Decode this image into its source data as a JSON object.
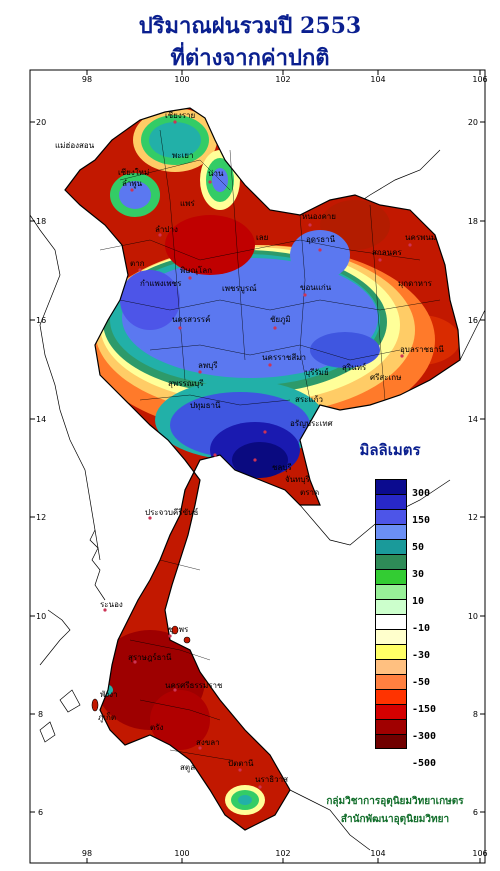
{
  "title": {
    "line1": "ปริมาณฝนรวมปี  2553",
    "line2": "ที่ต่างจากค่าปกติ"
  },
  "axes": {
    "x_ticks": [
      "98",
      "100",
      "102",
      "104",
      "106"
    ],
    "y_ticks": [
      "20",
      "18",
      "16",
      "14",
      "12",
      "10",
      "8",
      "6"
    ]
  },
  "legend": {
    "title": "มิลลิเมตร",
    "bins": [
      {
        "color": "#0b0b8f"
      },
      {
        "color": "#2828c8"
      },
      {
        "color": "#4d55e8"
      },
      {
        "color": "#6b8ff5"
      },
      {
        "color": "#1a9a9a"
      },
      {
        "color": "#2e8b57"
      },
      {
        "color": "#33cc33"
      },
      {
        "color": "#98f098"
      },
      {
        "color": "#ccffcc"
      },
      {
        "color": "#ffffff"
      },
      {
        "color": "#ffffcc"
      },
      {
        "color": "#ffff66"
      },
      {
        "color": "#ffc080"
      },
      {
        "color": "#ff8040"
      },
      {
        "color": "#ff3300"
      },
      {
        "color": "#d40000"
      },
      {
        "color": "#a00000"
      },
      {
        "color": "#700000"
      }
    ],
    "labels": [
      "300",
      "150",
      "50",
      "30",
      "10",
      "-10",
      "-30",
      "-50",
      "-150",
      "-300",
      "-500"
    ]
  },
  "provinces": [
    "เชียงราย",
    "เชียงใหม่",
    "แม่ฮ่องสอน",
    "ลำพูน",
    "ลำปาง",
    "พะเยา",
    "น่าน",
    "แพร่",
    "หนองคาย",
    "อุดรธานี",
    "สกลนคร",
    "นครพนม",
    "มุกดาหาร",
    "เลย",
    "ขอนแก่น",
    "ตาก",
    "กำแพงเพชร",
    "พิษณุโลก",
    "เพชรบูรณ์",
    "ชัยภูมิ",
    "นครสวรรค์",
    "นครราชสีมา",
    "อุบลราชธานี",
    "ลพบุรี",
    "สุพรรณบุรี",
    "ปทุมธานี",
    "ชลบุรี",
    "จันทบุรี",
    "ตราด",
    "ประจวบคีรีขันธ์",
    "ระนอง",
    "ชุมพร",
    "สุราษฎร์ธานี",
    "นครศรีธรรมราช",
    "ภูเก็ต",
    "พังงา",
    "ตรัง",
    "สงขลา",
    "สตูล",
    "ปัตตานี",
    "นราธิวาส",
    "สระแก้ว",
    "อรัญประเทศ",
    "บุรีรัมย์",
    "สุรินทร์",
    "ศรีสะเกษ"
  ],
  "credit": {
    "line1": "กลุ่มวิชาการอุตุนิยมวิทยาเกษตร",
    "line2": "สำนักพัฒนาอุตุนิยมวิทยา"
  },
  "colors": {
    "title": "#0a1f8f",
    "credit": "#116d2a",
    "dry": "#c00000",
    "wet": "#3a4fe0"
  }
}
